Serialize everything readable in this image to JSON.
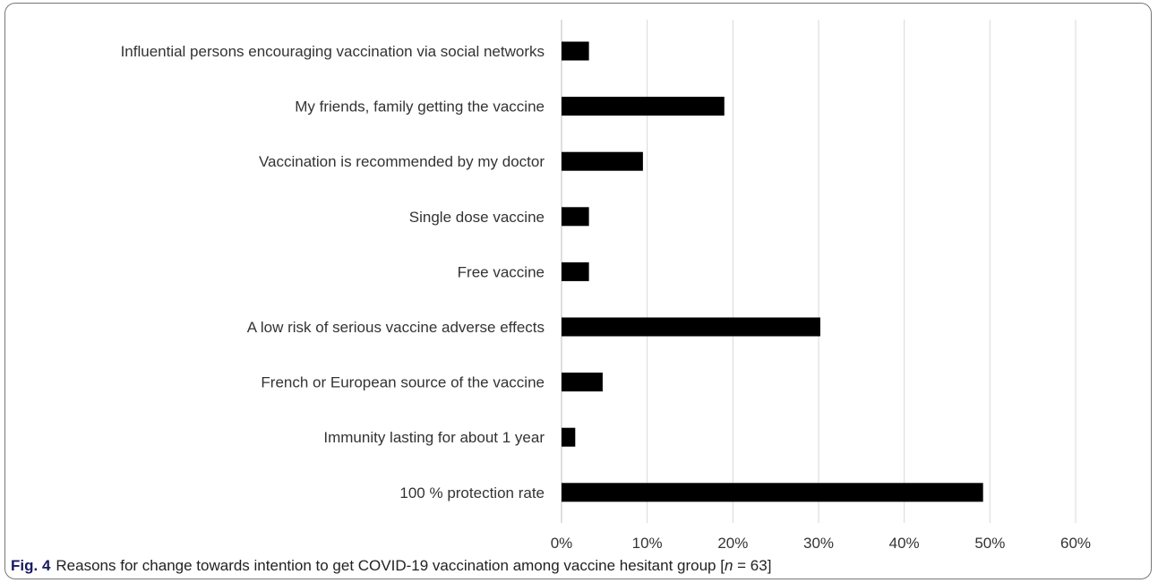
{
  "caption": {
    "label": "Fig. 4",
    "text_before": "Reasons for change towards intention to get COVID-19 vaccination among vaccine hesitant group [",
    "n_symbol": "n",
    "text_after": " = 63]"
  },
  "chart_data": {
    "type": "bar",
    "orientation": "horizontal",
    "categories": [
      "Influential persons encouraging vaccination via social networks",
      "My friends, family getting the vaccine",
      "Vaccination is recommended by my doctor",
      "Single dose vaccine",
      "Free vaccine",
      "A low risk of serious vaccine adverse effects",
      "French or European source of the vaccine",
      "Immunity lasting for about 1 year",
      "100 % protection rate"
    ],
    "values": [
      3.2,
      19.0,
      9.5,
      3.2,
      3.2,
      30.2,
      4.8,
      1.6,
      49.2
    ],
    "value_unit": "%",
    "xlim": [
      0,
      60
    ],
    "xticks": [
      "0%",
      "10%",
      "20%",
      "30%",
      "40%",
      "50%",
      "60%"
    ],
    "xtick_values": [
      0,
      10,
      20,
      30,
      40,
      50,
      60
    ],
    "grid": "vertical",
    "bar_color": "#000000",
    "grid_color": "#d9d9d9",
    "title": "",
    "xlabel": "",
    "ylabel": ""
  }
}
